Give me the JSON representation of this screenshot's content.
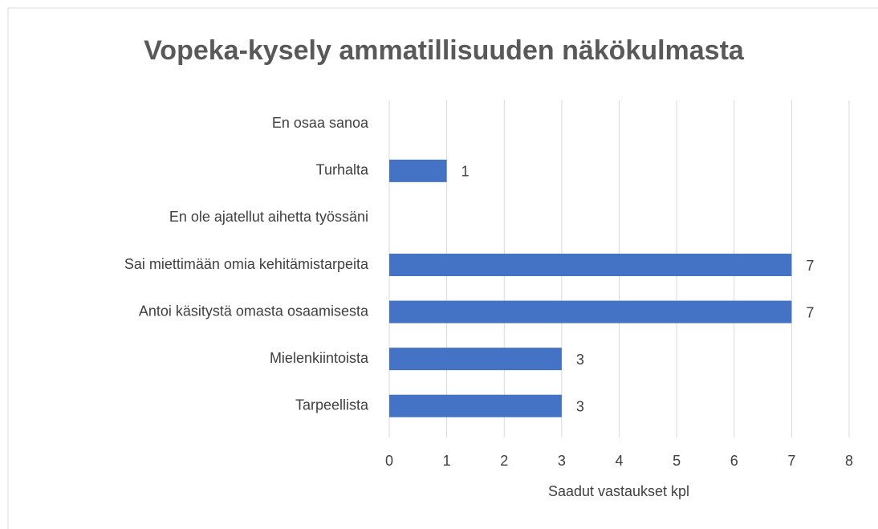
{
  "chart_data": {
    "type": "barh",
    "title": "Vopeka-kysely ammatillisuuden näkökulmasta",
    "categories": [
      "En osaa sanoa",
      "Turhalta",
      "En ole ajatellut aihetta työssäni",
      "Sai miettimään omia kehitämistarpeita",
      "Antoi käsitystä omasta osaamisesta",
      "Mielenkiintoista",
      "Tarpeellista"
    ],
    "values": [
      null,
      1,
      null,
      7,
      7,
      3,
      3
    ],
    "color": "#4472c4",
    "xlabel": "Saadut vastaukset kpl",
    "xlim": [
      0,
      8
    ],
    "xticks": [
      0,
      1,
      2,
      3,
      4,
      5,
      6,
      7,
      8
    ],
    "grid": true
  }
}
